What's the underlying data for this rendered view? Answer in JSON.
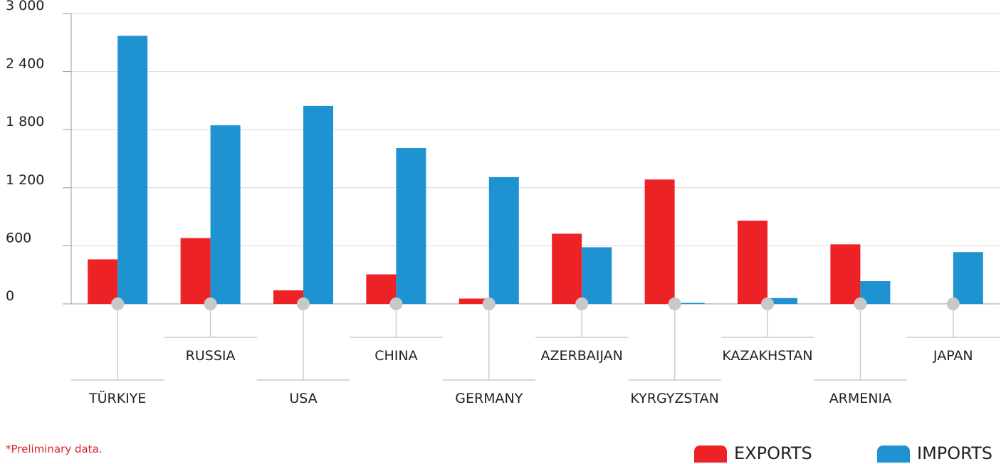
{
  "colors": {
    "exports": "#ec2227",
    "imports": "#1f93d2"
  },
  "note": "*Preliminary data.",
  "legend": [
    {
      "label": "EXPORTS",
      "color": "#ec2227"
    },
    {
      "label": "IMPORTS",
      "color": "#1f93d2"
    }
  ],
  "chart_data": {
    "type": "bar",
    "categories": [
      "TÜRKIYE",
      "RUSSIA",
      "USA",
      "CHINA",
      "GERMANY",
      "AZERBAIJAN",
      "KYRGYZSTAN",
      "KAZAKHSTAN",
      "ARMENIA",
      "JAPAN"
    ],
    "series": [
      {
        "name": "EXPORTS",
        "values": [
          460,
          680,
          140,
          305,
          55,
          725,
          1285,
          860,
          615,
          0
        ]
      },
      {
        "name": "IMPORTS",
        "values": [
          2770,
          1845,
          2045,
          1610,
          1310,
          585,
          10,
          60,
          235,
          535
        ]
      }
    ],
    "yticks": [
      "0",
      "600",
      "1 200",
      "1 800",
      "2 400",
      "3 000"
    ],
    "ylim": [
      0,
      3000
    ],
    "grid": true,
    "legend_position": "bottom-right"
  }
}
